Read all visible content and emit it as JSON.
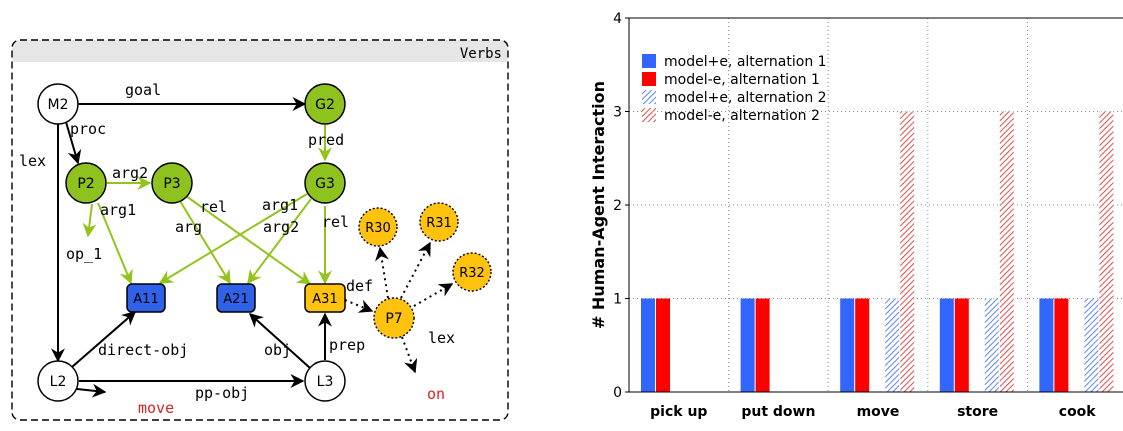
{
  "graph": {
    "panel_title": "Verbs",
    "colors": {
      "green": "#8dc21f",
      "blue": "#2f62e8",
      "yellow": "#ffc30f",
      "green_edge": "#92c41c",
      "red_text": "#e02020"
    },
    "nodes": {
      "M2": "M2",
      "G2": "G2",
      "P2": "P2",
      "P3": "P3",
      "G3": "G3",
      "R30": "R30",
      "R31": "R31",
      "R32": "R32",
      "A11": "A11",
      "A21": "A21",
      "A31": "A31",
      "P7": "P7",
      "L2": "L2",
      "L3": "L3"
    },
    "edge_labels": {
      "goal": "goal",
      "proc": "proc",
      "lex_m2": "lex",
      "pred": "pred",
      "arg2_p": "arg2",
      "arg1_p": "arg1",
      "arg_p3": "arg",
      "rel_p3": "rel",
      "arg1_g3": "arg1",
      "arg2_g3": "arg2",
      "rel_g3": "rel",
      "op_1": "op_1",
      "def": "def",
      "lex_p7": "lex",
      "direct_obj": "direct-obj",
      "obj": "obj",
      "prep": "prep",
      "pp_obj": "pp-obj"
    },
    "words": {
      "move": "move",
      "on": "on"
    }
  },
  "chart_data": {
    "type": "bar",
    "ylabel": "# Human-Agent Interaction",
    "categories": [
      "pick up",
      "put down",
      "move",
      "store",
      "cook"
    ],
    "ylim": [
      0,
      4
    ],
    "yticks": [
      "0",
      "1",
      "2",
      "3",
      "4"
    ],
    "grid": true,
    "legend_position": "top-left",
    "series": [
      {
        "name": "model+e, alternation 1",
        "values": [
          1,
          1,
          1,
          1,
          1
        ],
        "color": "#3366ff",
        "pattern": "solid"
      },
      {
        "name": "model-e, alternation 1",
        "values": [
          1,
          1,
          1,
          1,
          1
        ],
        "color": "#ff0000",
        "pattern": "solid"
      },
      {
        "name": "model+e, alternation 2",
        "values": [
          0,
          0,
          1,
          1,
          1
        ],
        "color": "#3366ff",
        "pattern": "hatched"
      },
      {
        "name": "model-e, alternation 2",
        "values": [
          0,
          0,
          3,
          3,
          3
        ],
        "color": "#e02020",
        "pattern": "hatched"
      }
    ]
  }
}
